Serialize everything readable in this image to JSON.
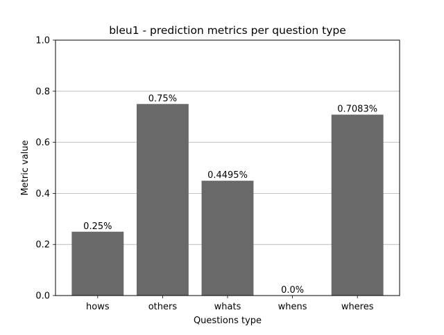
{
  "chart_data": {
    "type": "bar",
    "title": "bleu1 - prediction metrics per question type",
    "xlabel": "Questions type",
    "ylabel": "Metric value",
    "categories": [
      "hows",
      "others",
      "whats",
      "whens",
      "wheres"
    ],
    "values": [
      0.25,
      0.75,
      0.4495,
      0.0,
      0.7083
    ],
    "data_labels": [
      "0.25%",
      "0.75%",
      "0.4495%",
      "0.0%",
      "0.7083%"
    ],
    "ylim": [
      0,
      1.0
    ],
    "yticks": [
      "0.0",
      "0.2",
      "0.4",
      "0.6",
      "0.8",
      "1.0"
    ],
    "grid": "horizontal",
    "bar_color": "#696969",
    "grid_color": "#b0b0b0"
  }
}
